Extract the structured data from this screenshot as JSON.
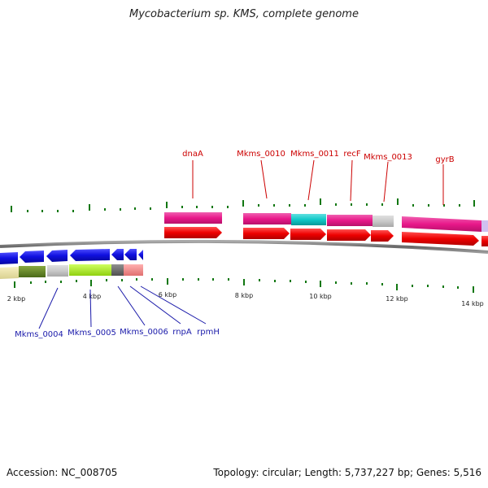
{
  "title": "Mycobacterium sp. KMS, complete genome",
  "accession": "Accession: NC_008705",
  "summary": "Topology: circular; Length: 5,737,227 bp; Genes: 5,516",
  "axis": {
    "tick_labels": [
      "2 kbp",
      "4 kbp",
      "6 kbp",
      "8 kbp",
      "10 kbp",
      "12 kbp",
      "14 kbp"
    ]
  },
  "genes_top": [
    {
      "name": "dnaA",
      "color": "#e8188a"
    },
    {
      "name": "Mkms_0010",
      "color": "#e8188a"
    },
    {
      "name": "Mkms_0011",
      "color": "#10c8c8"
    },
    {
      "name": "recF",
      "color": "#e8188a"
    },
    {
      "name": "Mkms_0013",
      "color": "#c8c8c8"
    },
    {
      "name": "gyrB",
      "color": "#e8188a"
    }
  ],
  "genes_bottom": [
    {
      "name": "Mkms_0004",
      "color": "#1010e0"
    },
    {
      "name": "Mkms_0005",
      "color": "#1010e0"
    },
    {
      "name": "Mkms_0006",
      "color": "#1010e0"
    },
    {
      "name": "rnpA",
      "color": "#1010e0"
    },
    {
      "name": "rpmH",
      "color": "#1010e0"
    }
  ],
  "colors": {
    "forward_cds": "#ee0000",
    "reverse_cds": "#1010e0",
    "backbone": "#777777",
    "tick": "#117711"
  }
}
